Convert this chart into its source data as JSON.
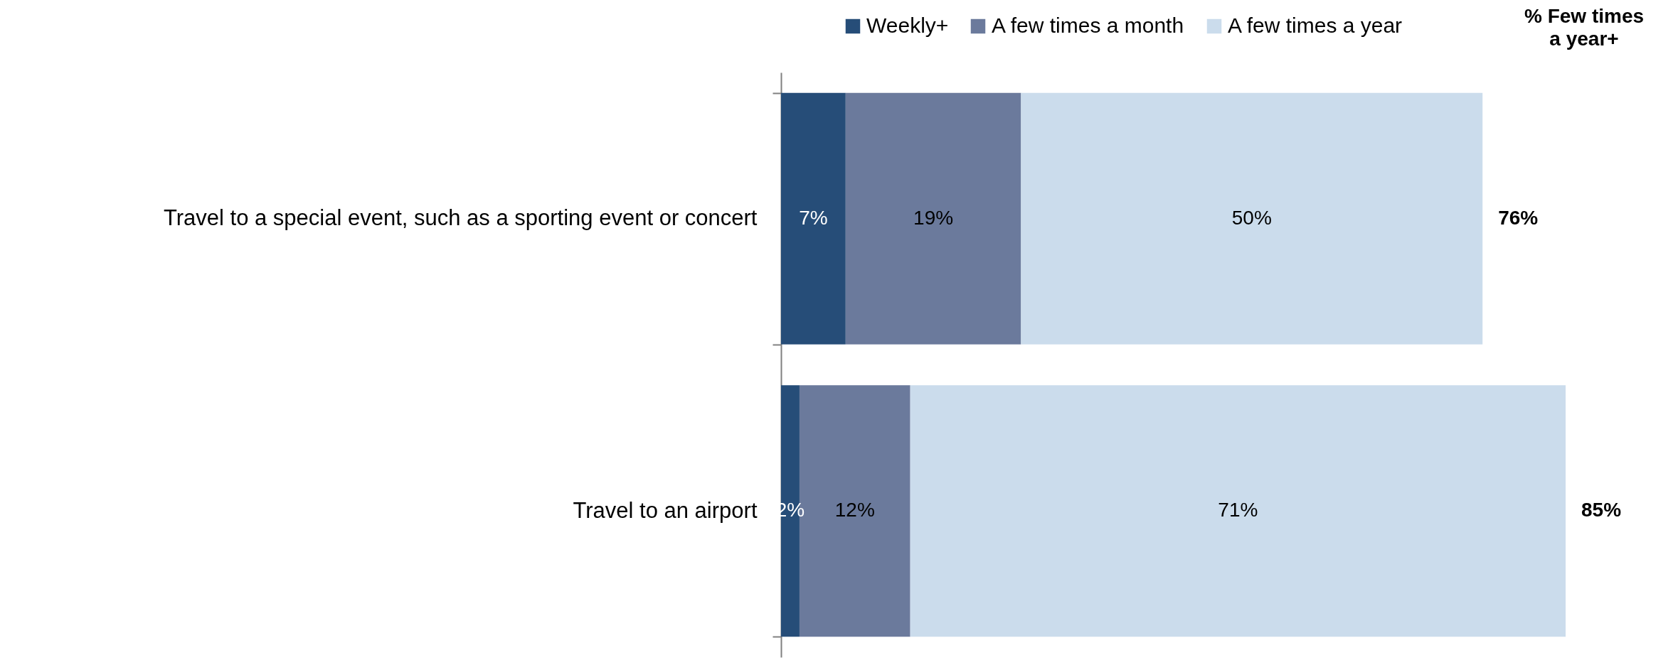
{
  "chart_data": {
    "type": "bar",
    "orientation": "horizontal",
    "stacked": true,
    "legend": "top",
    "categories": [
      "Travel to a special event, such as a sporting event or concert",
      "Travel to an airport"
    ],
    "series": [
      {
        "name": "Weekly+",
        "color": "#264d78",
        "values": [
          7,
          2
        ],
        "value_labels": [
          "7%",
          "2%"
        ]
      },
      {
        "name": "A few times a month",
        "color": "#6b7a9c",
        "values": [
          19,
          12
        ],
        "value_labels": [
          "19%",
          "12%"
        ]
      },
      {
        "name": "A few times a year",
        "color": "#cbdcec",
        "values": [
          50,
          71
        ],
        "value_labels": [
          "50%",
          "71%"
        ]
      }
    ],
    "totals": [
      "76%",
      "85%"
    ],
    "annotations": [
      "% Few times a year+"
    ]
  }
}
